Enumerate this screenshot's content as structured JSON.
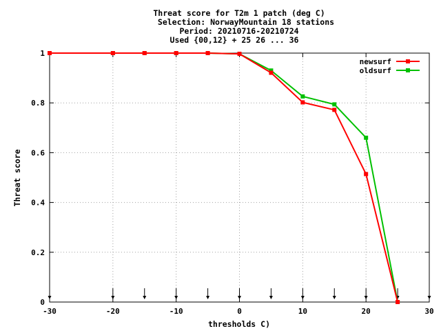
{
  "chart_data": {
    "type": "line",
    "title_lines": [
      "Threat score  for T2m 1 patch (deg C)",
      "Selection: NorwayMountain     18 stations",
      "Period: 20210716-20210724",
      "Used {00,12} + 25 26 ... 36"
    ],
    "xlabel": "thresholds C)",
    "ylabel": "Threat score",
    "xlim": [
      -30,
      30
    ],
    "ylim": [
      0,
      1
    ],
    "x_ticks": [
      -30,
      -20,
      -10,
      0,
      10,
      20,
      30
    ],
    "y_ticks": [
      0,
      0.2,
      0.4,
      0.6,
      0.8,
      1
    ],
    "y_tick_labels": [
      "0",
      "0.2",
      "0.4",
      "0.6",
      "0.8",
      "1"
    ],
    "grid": true,
    "legend_position": "top-right",
    "threshold_markers": [
      -30,
      -20,
      -15,
      -10,
      -5,
      0,
      5,
      10,
      15,
      20,
      25,
      30
    ],
    "series": [
      {
        "name": "newsurf",
        "color": "#ff0000",
        "x": [
          -30,
          -20,
          -15,
          -10,
          -5,
          0,
          5,
          10,
          15,
          20,
          25
        ],
        "y": [
          1.0,
          1.0,
          1.0,
          1.0,
          1.0,
          0.997,
          0.921,
          0.802,
          0.772,
          0.514,
          0.0
        ]
      },
      {
        "name": "oldsurf",
        "color": "#00c000",
        "x": [
          -30,
          -20,
          -15,
          -10,
          -5,
          0,
          5,
          10,
          15,
          20,
          25
        ],
        "y": [
          1.0,
          1.0,
          1.0,
          1.0,
          1.0,
          0.997,
          0.93,
          0.826,
          0.794,
          0.66,
          0.0
        ]
      }
    ]
  }
}
